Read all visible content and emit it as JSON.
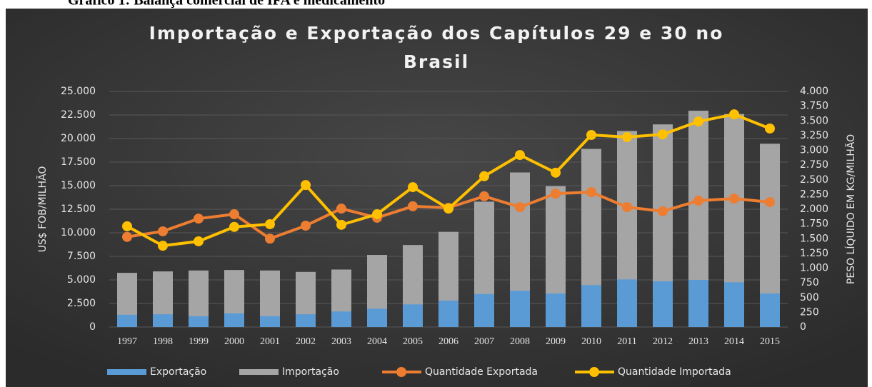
{
  "caption": "Gráfico 1: Balança comercial de IFA e medicamento",
  "chart_data": {
    "type": "bar-line",
    "title": "Importação e Exportação dos Capítulos 29 e 30 no Brasil",
    "title_lines": [
      "Importação e Exportação dos Capítulos 29 e 30 no",
      "Brasil"
    ],
    "ylabel": "US$ FOB/MILHÃO",
    "y2label": "PESO LÍQUIDO EM KG/MILHÃO",
    "categories": [
      "1997",
      "1998",
      "1999",
      "2000",
      "2001",
      "2002",
      "2003",
      "2004",
      "2005",
      "2006",
      "2007",
      "2008",
      "2009",
      "2010",
      "2011",
      "2012",
      "2013",
      "2014",
      "2015"
    ],
    "series": [
      {
        "name": "Exportação",
        "kind": "bar",
        "color": "#5b9bd5",
        "values": [
          1300,
          1350,
          1150,
          1450,
          1150,
          1350,
          1650,
          1950,
          2400,
          2800,
          3500,
          3850,
          3550,
          4450,
          5050,
          4850,
          5000,
          4750,
          3550
        ]
      },
      {
        "name": "Importação",
        "kind": "bar",
        "color": "#a5a5a5",
        "values": [
          5750,
          5900,
          6000,
          6050,
          6000,
          5850,
          6100,
          7650,
          8700,
          10100,
          13300,
          16400,
          14950,
          18900,
          20800,
          21500,
          22950,
          22600,
          19450
        ]
      },
      {
        "name": "Quantidade Exportada",
        "kind": "line",
        "axis": "y2",
        "color": "#ed7d31",
        "values": [
          1530,
          1625,
          1840,
          1915,
          1500,
          1720,
          2010,
          1855,
          2050,
          2025,
          2220,
          2035,
          2265,
          2290,
          2035,
          1965,
          2145,
          2180,
          2120
        ]
      },
      {
        "name": "Quantidade Importada",
        "kind": "line",
        "axis": "y2",
        "color": "#ffc000",
        "values": [
          1710,
          1380,
          1455,
          1700,
          1745,
          2410,
          1735,
          1915,
          2375,
          2010,
          2560,
          2920,
          2620,
          3260,
          3225,
          3270,
          3490,
          3610,
          3370
        ]
      }
    ],
    "ylim": [
      0,
      25000
    ],
    "yticks": [
      0,
      {
        "value": 2500,
        "label": "2.500"
      },
      {
        "value": 5000,
        "label": "5.000"
      },
      {
        "value": 7500,
        "label": "7.500"
      },
      {
        "value": 10000,
        "label": "10.000"
      },
      {
        "value": 12500,
        "label": "12.500"
      },
      {
        "value": 15000,
        "label": "15.000"
      },
      {
        "value": 17500,
        "label": "17.500"
      },
      {
        "value": 20000,
        "label": "20.000"
      },
      {
        "value": 22500,
        "label": "22.500"
      },
      {
        "value": 25000,
        "label": "25.000"
      }
    ],
    "y2lim": [
      0,
      4000
    ],
    "y2ticks": [
      0,
      250,
      500,
      750,
      {
        "value": 1000,
        "label": "1.000"
      },
      {
        "value": 1250,
        "label": "1.250"
      },
      {
        "value": 1500,
        "label": "1.500"
      },
      {
        "value": 1750,
        "label": "1.750"
      },
      {
        "value": 2000,
        "label": "2.000"
      },
      {
        "value": 2250,
        "label": "2.250"
      },
      {
        "value": 2500,
        "label": "2.500"
      },
      {
        "value": 2750,
        "label": "2.750"
      },
      {
        "value": 3000,
        "label": "3.000"
      },
      {
        "value": 3250,
        "label": "3.250"
      },
      {
        "value": 3500,
        "label": "3.500"
      },
      {
        "value": 3750,
        "label": "3.750"
      },
      {
        "value": 4000,
        "label": "4.000"
      }
    ],
    "grid": true,
    "legend": "bottom"
  }
}
